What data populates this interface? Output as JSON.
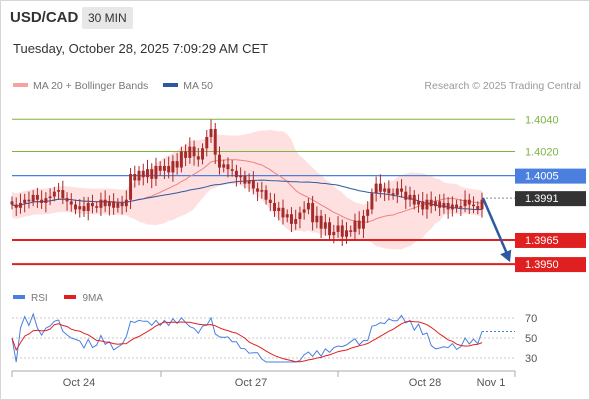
{
  "header": {
    "symbol": "USD/CAD",
    "timeframe": "30 MIN",
    "datetime": "Tuesday, October 28, 2025 7:09:29 AM CET"
  },
  "legend": {
    "ma20_label": "MA 20 + Bollinger Bands",
    "ma50_label": "MA 50",
    "credit": "Research © 2025 Trading Central"
  },
  "rsi_legend": {
    "rsi_label": "RSI",
    "ma_label": "9MA"
  },
  "colors": {
    "candle": "#a52a2a",
    "bollinger_fill": "#ffd6d6",
    "ma20": "#f08080",
    "ma50": "#2c5aa0",
    "target_level": "#7cb342",
    "pivot_level": "#4a7fe0",
    "support_level": "#e02020",
    "last_price": "#333333",
    "arrow": "#2c5aa0",
    "rsi": "#4a7fe0",
    "rsi_ma": "#e02020"
  },
  "chart_data": {
    "type": "candlestick",
    "price_axis": {
      "ylim": [
        1.3937,
        1.4052
      ],
      "labels": [
        {
          "value": 1.404,
          "label": "1.4040",
          "kind": "target"
        },
        {
          "value": 1.402,
          "label": "1.4020",
          "kind": "target"
        },
        {
          "value": 1.4005,
          "label": "1.4005",
          "kind": "pivot"
        },
        {
          "value": 1.3991,
          "label": "1.3991",
          "kind": "last"
        },
        {
          "value": 1.3965,
          "label": "1.3965",
          "kind": "support"
        },
        {
          "value": 1.395,
          "label": "1.3950",
          "kind": "support"
        }
      ]
    },
    "x_axis": {
      "labels": [
        "Oct 24",
        "Oct 27",
        "Oct 28",
        "Nov 1"
      ]
    },
    "forecast": {
      "from": 1.3991,
      "to": 1.395
    },
    "closes": [
      1.3987,
      1.3985,
      1.3988,
      1.399,
      1.3989,
      1.3993,
      1.399,
      1.3988,
      1.3991,
      1.3992,
      1.3995,
      1.3996,
      1.3991,
      1.3989,
      1.3987,
      1.3984,
      1.3986,
      1.3983,
      1.3988,
      1.3986,
      1.3985,
      1.399,
      1.3986,
      1.3989,
      1.3985,
      1.3988,
      1.3986,
      1.399,
      1.4006,
      1.4002,
      1.4008,
      1.4004,
      1.4009,
      1.4003,
      1.4011,
      1.4008,
      1.4011,
      1.4007,
      1.4014,
      1.401,
      1.402,
      1.4016,
      1.4023,
      1.4017,
      1.4015,
      1.4022,
      1.4029,
      1.4034,
      1.4018,
      1.401,
      1.4012,
      1.4009,
      1.4008,
      1.4004,
      1.4005,
      1.4,
      1.4002,
      1.3997,
      1.3995,
      1.3996,
      1.399,
      1.3988,
      1.3983,
      1.3985,
      1.3979,
      1.3981,
      1.3975,
      1.3978,
      1.3982,
      1.3984,
      1.3988,
      1.3976,
      1.398,
      1.3972,
      1.3976,
      1.3968,
      1.397,
      1.3974,
      1.3967,
      1.3971,
      1.397,
      1.3977,
      1.3972,
      1.398,
      1.3984,
      1.3994,
      1.4,
      1.3995,
      1.3997,
      1.3994,
      1.3993,
      1.3997,
      1.3995,
      1.399,
      1.3993,
      1.3987,
      1.3989,
      1.3984,
      1.399,
      1.3986,
      1.3989,
      1.3985,
      1.3988,
      1.3984,
      1.3987,
      1.3985,
      1.3986,
      1.399,
      1.3987,
      1.3986,
      1.3984,
      1.399
    ],
    "rsi_axis": {
      "ylim": [
        20,
        80
      ],
      "ticks": [
        {
          "value": 70,
          "label": "70"
        },
        {
          "value": 50,
          "label": "50"
        },
        {
          "value": 30,
          "label": "30"
        }
      ]
    }
  }
}
